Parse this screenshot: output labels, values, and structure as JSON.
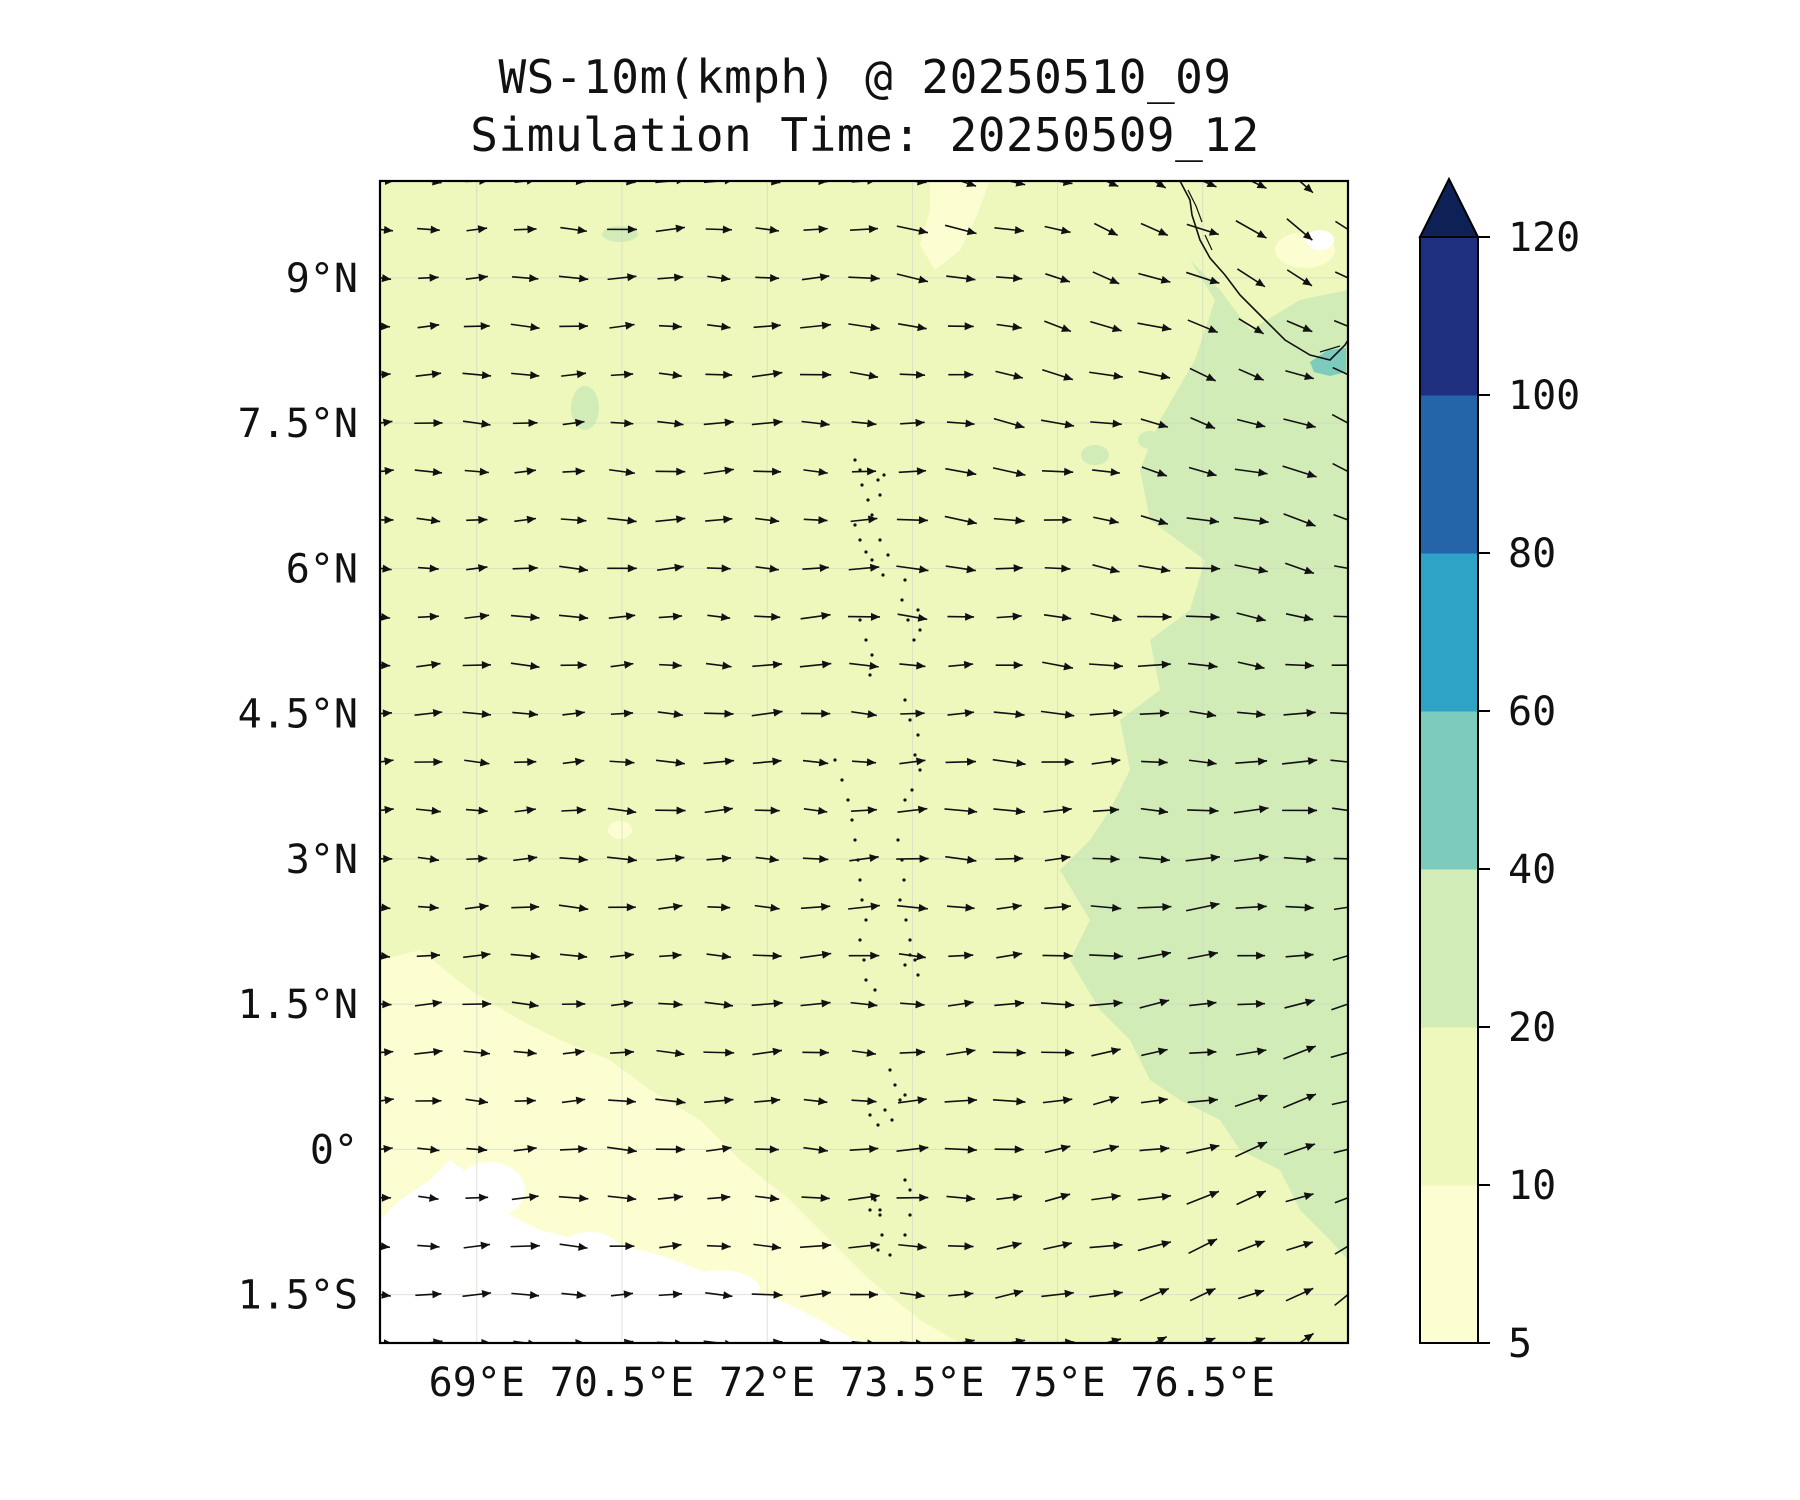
{
  "title": {
    "line1": "WS-10m(kmph) @ 20250510_09",
    "line2": "Simulation Time: 20250509_12"
  },
  "map": {
    "lon_range": [
      68.0,
      78.0
    ],
    "lat_range": [
      -2.0,
      10.0
    ],
    "lon_ticks": [
      {
        "value": 69.0,
        "label": "69°E"
      },
      {
        "value": 70.5,
        "label": "70.5°E"
      },
      {
        "value": 72.0,
        "label": "72°E"
      },
      {
        "value": 73.5,
        "label": "73.5°E"
      },
      {
        "value": 75.0,
        "label": "75°E"
      },
      {
        "value": 76.5,
        "label": "76.5°E"
      }
    ],
    "lat_ticks": [
      {
        "value": 9.0,
        "label": "9°N"
      },
      {
        "value": 7.5,
        "label": "7.5°N"
      },
      {
        "value": 6.0,
        "label": "6°N"
      },
      {
        "value": 4.5,
        "label": "4.5°N"
      },
      {
        "value": 3.0,
        "label": "3°N"
      },
      {
        "value": 1.5,
        "label": "1.5°N"
      },
      {
        "value": 0.0,
        "label": "0°"
      },
      {
        "value": -1.5,
        "label": "1.5°S"
      }
    ],
    "grid": true,
    "background_color": "#eef8bd"
  },
  "colorbar": {
    "extend": "max",
    "levels": [
      {
        "from": 5,
        "to": 10,
        "color": "#fcfdd0"
      },
      {
        "from": 10,
        "to": 20,
        "color": "#eef8bd"
      },
      {
        "from": 20,
        "to": 40,
        "color": "#d1ecb6"
      },
      {
        "from": 40,
        "to": 60,
        "color": "#7ccbbd"
      },
      {
        "from": 60,
        "to": 80,
        "color": "#2ea3c6"
      },
      {
        "from": 80,
        "to": 100,
        "color": "#2465aa"
      },
      {
        "from": 100,
        "to": 120,
        "color": "#1f2f7f"
      }
    ],
    "over_color": "#0e2157",
    "tick_labels": [
      "5",
      "10",
      "20",
      "40",
      "60",
      "80",
      "100",
      "120"
    ],
    "tick_values": [
      5,
      10,
      20,
      40,
      60,
      80,
      100,
      120
    ]
  },
  "wind_field": {
    "lon_start": 68.0,
    "lon_step": 0.5,
    "lon_count": 21,
    "lat_start": 10.0,
    "lat_step": -0.5,
    "lat_count": 25,
    "prevailing": "westerly, turning northwesterly in the northeast and southwesterly in the southeast"
  }
}
